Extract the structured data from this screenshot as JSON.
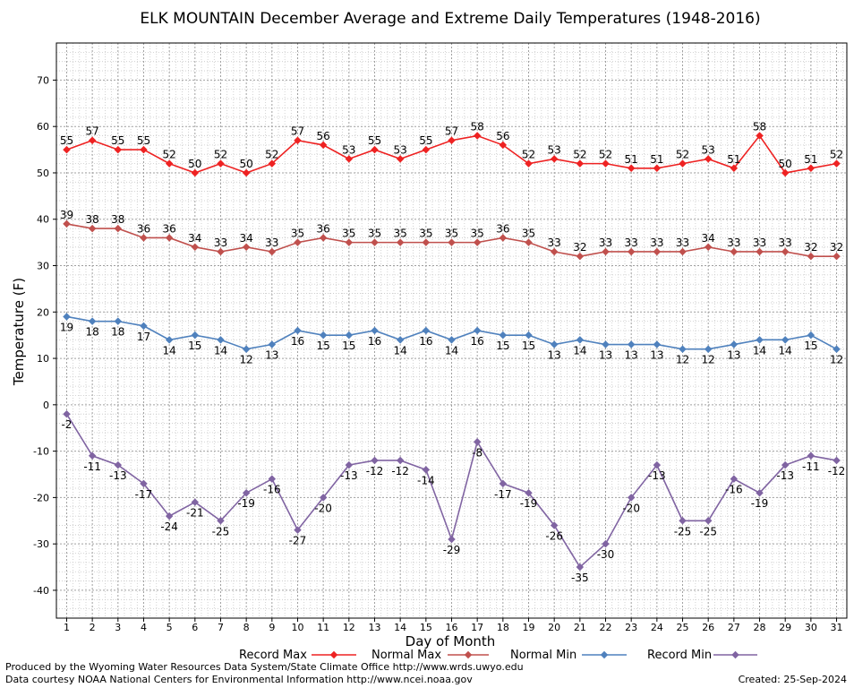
{
  "chart_data": {
    "type": "line",
    "title": "ELK MOUNTAIN December Average and Extreme Daily Temperatures (1948-2016)",
    "xlabel": "Day of Month",
    "ylabel": "Temperature (F)",
    "ylim": [
      -46,
      78
    ],
    "xlim": [
      0.6,
      31.4
    ],
    "yticks": [
      -40,
      -30,
      -20,
      -10,
      0,
      10,
      20,
      30,
      40,
      50,
      60,
      70
    ],
    "x": [
      1,
      2,
      3,
      4,
      5,
      6,
      7,
      8,
      9,
      10,
      11,
      12,
      13,
      14,
      15,
      16,
      17,
      18,
      19,
      20,
      21,
      22,
      23,
      24,
      25,
      26,
      27,
      28,
      29,
      30,
      31
    ],
    "grid": true,
    "legend_position": "bottom",
    "series": [
      {
        "name": "Record Max",
        "color": "#ee2222",
        "label_position": "above",
        "values": [
          55,
          57,
          55,
          55,
          52,
          50,
          52,
          50,
          52,
          57,
          56,
          53,
          55,
          53,
          55,
          57,
          58,
          56,
          52,
          53,
          52,
          52,
          51,
          51,
          52,
          53,
          51,
          58,
          50,
          51,
          52
        ]
      },
      {
        "name": "Normal Max",
        "color": "#c0504d",
        "label_position": "above",
        "values": [
          39,
          38,
          38,
          36,
          36,
          34,
          33,
          34,
          33,
          35,
          36,
          35,
          35,
          35,
          35,
          35,
          35,
          36,
          35,
          33,
          32,
          33,
          33,
          33,
          33,
          34,
          33,
          33,
          33,
          32,
          32
        ]
      },
      {
        "name": "Normal Min",
        "color": "#4f81bd",
        "label_position": "below",
        "values": [
          19,
          18,
          18,
          17,
          14,
          15,
          14,
          12,
          13,
          16,
          15,
          15,
          16,
          14,
          16,
          14,
          16,
          15,
          15,
          13,
          14,
          13,
          13,
          13,
          12,
          12,
          13,
          14,
          14,
          15,
          12
        ]
      },
      {
        "name": "Record Min",
        "color": "#8064a2",
        "label_position": "below",
        "values": [
          -2,
          -11,
          -13,
          -17,
          -24,
          -21,
          -25,
          -19,
          -16,
          -27,
          -20,
          -13,
          -12,
          -12,
          -14,
          -29,
          -8,
          -17,
          -19,
          -26,
          -35,
          -30,
          -20,
          -13,
          -25,
          -25,
          -16,
          -19,
          -13,
          -11,
          -12
        ]
      }
    ]
  },
  "footer": {
    "line1": "Produced by the Wyoming Water Resources Data System/State Climate Office http://www.wrds.uwyo.edu",
    "line2": "Data courtesy NOAA National Centers for Environmental Information http://www.ncei.noaa.gov",
    "created": "Created:  25-Sep-2024"
  }
}
